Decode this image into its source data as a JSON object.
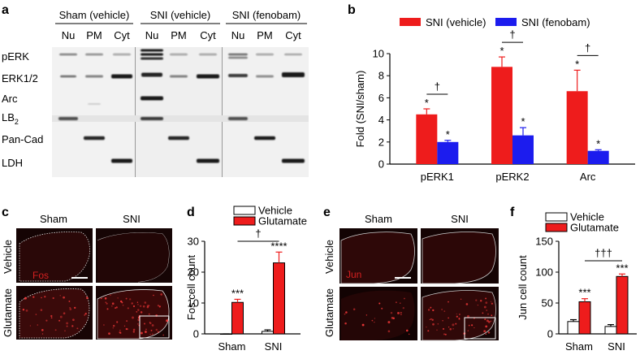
{
  "panel_labels": {
    "a": "a",
    "b": "b",
    "c": "c",
    "d": "d",
    "e": "e",
    "f": "f"
  },
  "blot": {
    "groups": [
      "Sham (vehicle)",
      "SNI (vehicle)",
      "SNI (fenobam)"
    ],
    "fractions": [
      "Nu",
      "PM",
      "Cyt",
      "Nu",
      "PM",
      "Cyt",
      "Nu",
      "PM",
      "Cyt"
    ],
    "rows": [
      "pERK",
      "ERK1/2",
      "Arc",
      "LB",
      "Pan-Cad",
      "LDH"
    ],
    "lb_subscript": "2"
  },
  "micro_c": {
    "cols": [
      "Sham",
      "SNI"
    ],
    "rows": [
      "Vehicle",
      "Glutamate"
    ],
    "stain": "Fos",
    "stain_color": "#d42020"
  },
  "micro_e": {
    "cols": [
      "Sham",
      "SNI"
    ],
    "rows": [
      "Vehicle",
      "Glutamate"
    ],
    "stain": "Jun",
    "stain_color": "#d42020"
  },
  "colors": {
    "red": "#ee1c1c",
    "blue": "#1c1cee",
    "white": "#ffffff"
  },
  "chart_data": [
    {
      "panel": "b",
      "type": "bar",
      "categories": [
        "pERK1",
        "pERK2",
        "Arc"
      ],
      "series": [
        {
          "name": "SNI (vehicle)",
          "color": "#ee1c1c",
          "values": [
            4.5,
            8.8,
            6.6
          ],
          "errors": [
            0.5,
            0.9,
            1.9
          ]
        },
        {
          "name": "SNI (fenobam)",
          "color": "#1c1cee",
          "values": [
            2.0,
            2.6,
            1.2
          ],
          "errors": [
            0.15,
            0.7,
            0.1
          ]
        }
      ],
      "ylabel": "Fold (SNI/sham)",
      "ylim": [
        0,
        10
      ],
      "yticks": [
        0,
        2,
        4,
        6,
        8,
        10
      ],
      "star_marks": [
        "*",
        "*",
        "*",
        "*",
        "*"
      ],
      "dagger": "†",
      "legend": "top"
    },
    {
      "panel": "d",
      "type": "bar",
      "categories": [
        "Sham",
        "SNI"
      ],
      "series": [
        {
          "name": "Vehicle",
          "color": "#ffffff",
          "values": [
            0,
            0.8
          ],
          "errors": [
            0,
            0.5
          ]
        },
        {
          "name": "Glutamate",
          "color": "#ee1c1c",
          "values": [
            10.2,
            23.0
          ],
          "errors": [
            1.0,
            3.5
          ]
        }
      ],
      "ylabel": "Fos cell count",
      "ylim": [
        0,
        30
      ],
      "yticks": [
        0,
        10,
        20,
        30
      ],
      "sig_marks": [
        "***",
        "****"
      ],
      "dagger": "†",
      "legend": "top"
    },
    {
      "panel": "f",
      "type": "bar",
      "categories": [
        "Sham",
        "SNI"
      ],
      "series": [
        {
          "name": "Vehicle",
          "color": "#ffffff",
          "values": [
            20,
            12
          ],
          "errors": [
            3,
            3
          ]
        },
        {
          "name": "Glutamate",
          "color": "#ee1c1c",
          "values": [
            52,
            93
          ],
          "errors": [
            5,
            4
          ]
        }
      ],
      "ylabel": "Jun cell count",
      "ylim": [
        0,
        150
      ],
      "yticks": [
        0,
        50,
        100,
        150
      ],
      "sig_marks": [
        "***",
        "***"
      ],
      "dagger": "†††",
      "legend": "top"
    }
  ]
}
